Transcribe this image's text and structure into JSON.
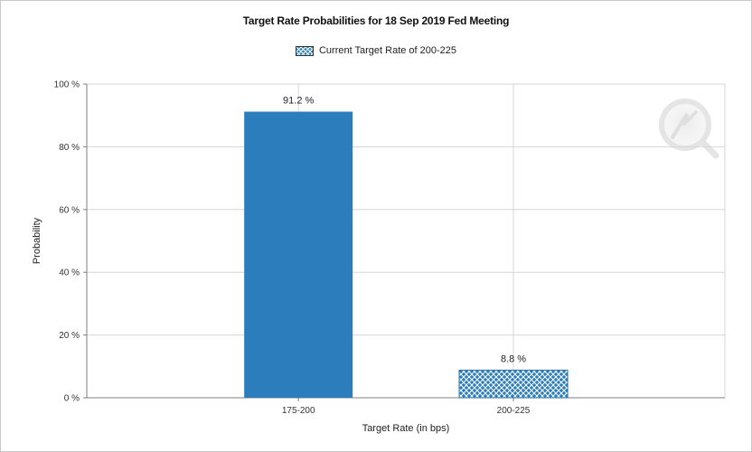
{
  "chart_data": {
    "type": "bar",
    "title": "Target Rate Probabilities for 18 Sep 2019 Fed Meeting",
    "xlabel": "Target Rate (in bps)",
    "ylabel": "Probability",
    "categories": [
      "175-200",
      "200-225"
    ],
    "values": [
      91.2,
      8.8
    ],
    "data_labels": [
      "91.2 %",
      "8.8 %"
    ],
    "ylim": [
      0,
      100
    ],
    "yticks": [
      0,
      20,
      40,
      60,
      80,
      100
    ],
    "ytick_labels": [
      "0 %",
      "20 %",
      "40 %",
      "60 %",
      "80 %",
      "100 %"
    ],
    "bar_styles": [
      "solid",
      "crosshatch"
    ],
    "legend": {
      "entries": [
        "Current Target Rate of 200-225"
      ],
      "placement": "top-center"
    },
    "grid": true,
    "colors": {
      "bar": "#2b7ebb",
      "hatch_bg": "#2b7ebb",
      "hatch_line": "#ffffff",
      "grid": "#d6d6d6",
      "axis": "#7f7f7f"
    }
  }
}
